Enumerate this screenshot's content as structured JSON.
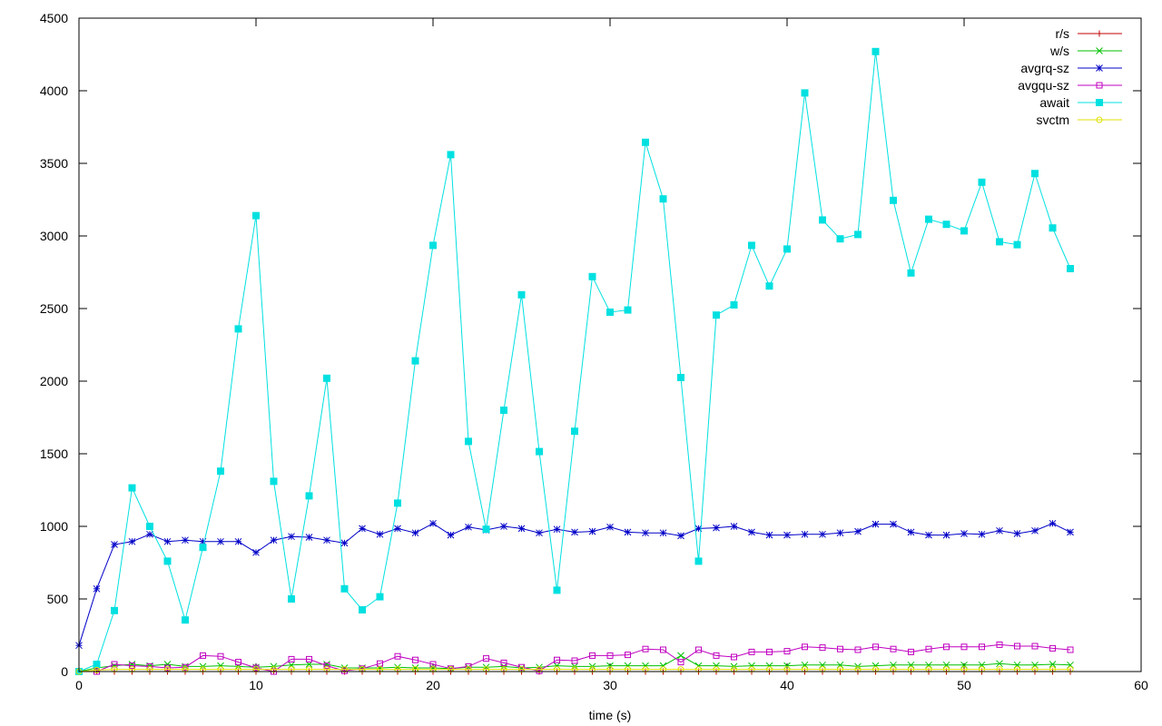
{
  "chart_data": {
    "type": "line",
    "title": "",
    "xlabel": "time (s)",
    "ylabel": "",
    "xlim": [
      0,
      60
    ],
    "ylim": [
      0,
      4500
    ],
    "x_ticks": [
      0,
      10,
      20,
      30,
      40,
      50,
      60
    ],
    "y_ticks": [
      0,
      500,
      1000,
      1500,
      2000,
      2500,
      3000,
      3500,
      4000,
      4500
    ],
    "grid": false,
    "legend_position": "top-right",
    "x": [
      0,
      1,
      2,
      3,
      4,
      5,
      6,
      7,
      8,
      9,
      10,
      11,
      12,
      13,
      14,
      15,
      16,
      17,
      18,
      19,
      20,
      21,
      22,
      23,
      24,
      25,
      26,
      27,
      28,
      29,
      30,
      31,
      32,
      33,
      34,
      35,
      36,
      37,
      38,
      39,
      40,
      41,
      42,
      43,
      44,
      45,
      46,
      47,
      48,
      49,
      50,
      51,
      52,
      53,
      54,
      55,
      56
    ],
    "series": [
      {
        "name": "r/s",
        "color": "#c00000",
        "marker": "plus",
        "values": [
          0,
          0,
          0,
          0,
          0,
          0,
          0,
          0,
          0,
          0,
          0,
          0,
          0,
          0,
          0,
          0,
          0,
          0,
          0,
          0,
          0,
          0,
          0,
          0,
          0,
          0,
          0,
          0,
          0,
          0,
          0,
          0,
          0,
          0,
          0,
          0,
          0,
          0,
          0,
          0,
          0,
          0,
          0,
          0,
          0,
          0,
          0,
          0,
          0,
          0,
          0,
          0,
          0,
          0,
          0,
          0,
          0
        ]
      },
      {
        "name": "w/s",
        "color": "#00c000",
        "marker": "cross",
        "values": [
          0,
          25,
          40,
          50,
          40,
          50,
          35,
          35,
          40,
          35,
          30,
          35,
          45,
          50,
          50,
          25,
          25,
          25,
          30,
          25,
          25,
          20,
          30,
          30,
          35,
          25,
          30,
          40,
          35,
          35,
          40,
          40,
          40,
          40,
          110,
          40,
          40,
          35,
          40,
          40,
          40,
          45,
          45,
          45,
          35,
          40,
          45,
          45,
          45,
          45,
          45,
          45,
          55,
          45,
          45,
          50,
          45
        ]
      },
      {
        "name": "avgrq-sz",
        "color": "#0000c8",
        "marker": "asterisk",
        "values": [
          180,
          570,
          875,
          895,
          945,
          895,
          905,
          895,
          895,
          895,
          820,
          905,
          930,
          925,
          905,
          885,
          985,
          945,
          985,
          955,
          1020,
          940,
          995,
          975,
          1000,
          985,
          955,
          980,
          960,
          965,
          995,
          960,
          955,
          955,
          935,
          985,
          990,
          1000,
          960,
          940,
          940,
          945,
          945,
          955,
          965,
          1015,
          1015,
          960,
          940,
          940,
          950,
          945,
          970,
          950,
          970,
          1020,
          960
        ]
      },
      {
        "name": "avgqu-sz",
        "color": "#c000c0",
        "marker": "square-open",
        "values": [
          0,
          0,
          50,
          40,
          35,
          25,
          30,
          110,
          105,
          65,
          25,
          0,
          85,
          85,
          40,
          5,
          20,
          55,
          105,
          80,
          50,
          20,
          35,
          90,
          60,
          30,
          5,
          80,
          75,
          110,
          110,
          115,
          155,
          150,
          65,
          150,
          110,
          100,
          135,
          135,
          140,
          170,
          165,
          155,
          150,
          170,
          155,
          135,
          155,
          170,
          170,
          170,
          185,
          175,
          175,
          160,
          150
        ]
      },
      {
        "name": "await",
        "color": "#00e0e0",
        "marker": "square-filled",
        "values": [
          0,
          50,
          420,
          1265,
          1000,
          760,
          355,
          855,
          1380,
          2360,
          3140,
          1310,
          500,
          1210,
          2020,
          570,
          425,
          515,
          1160,
          2140,
          2935,
          3560,
          1585,
          980,
          1800,
          2595,
          1515,
          560,
          1655,
          2720,
          2475,
          2490,
          3645,
          3255,
          2025,
          760,
          2455,
          2525,
          2935,
          2655,
          2910,
          3985,
          3110,
          2980,
          3010,
          4270,
          3245,
          2745,
          3115,
          3080,
          3035,
          3370,
          2960,
          2940,
          3430,
          3055,
          2775
        ]
      },
      {
        "name": "svctm",
        "color": "#e0e000",
        "marker": "circle-open",
        "values": [
          0,
          10,
          15,
          15,
          15,
          15,
          15,
          15,
          15,
          15,
          15,
          15,
          15,
          15,
          15,
          15,
          15,
          15,
          15,
          15,
          15,
          15,
          15,
          15,
          15,
          15,
          15,
          15,
          15,
          15,
          15,
          15,
          15,
          15,
          15,
          15,
          15,
          15,
          15,
          15,
          15,
          15,
          15,
          15,
          15,
          15,
          15,
          15,
          15,
          15,
          15,
          15,
          15,
          15,
          15,
          15,
          15
        ]
      }
    ]
  }
}
